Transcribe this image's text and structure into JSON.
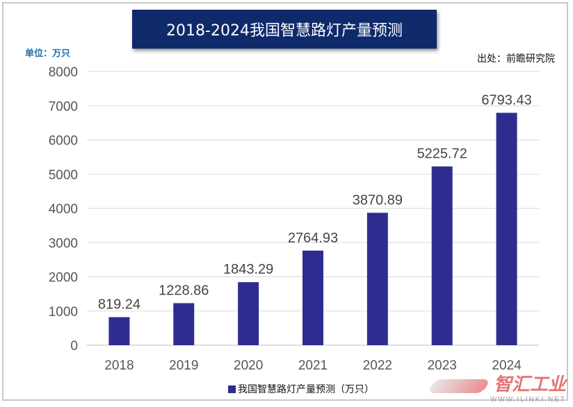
{
  "title": "2018-2024我国智慧路灯产量预测",
  "unit_label": "单位：万只",
  "source_label": "出处：前瞻研究院",
  "legend_label": "我国智慧路灯产量预测（万只）",
  "watermark": {
    "text": "智汇工业",
    "url": "WWW.ILINKI.NET"
  },
  "colors": {
    "bar": "#2e2d8f",
    "title_bg": "#0f2a6b",
    "unit": "#1a6fb0",
    "grid": "#d9d9d9"
  },
  "chart_data": {
    "type": "bar",
    "title": "2018-2024我国智慧路灯产量预测",
    "xlabel": "",
    "ylabel": "单位：万只",
    "categories": [
      "2018",
      "2019",
      "2020",
      "2021",
      "2022",
      "2023",
      "2024"
    ],
    "series": [
      {
        "name": "我国智慧路灯产量预测（万只）",
        "values": [
          819.24,
          1228.86,
          1843.29,
          2764.93,
          3870.89,
          5225.72,
          6793.43
        ]
      }
    ],
    "data_labels": [
      "819.24",
      "1228.86",
      "1843.29",
      "2764.93",
      "3870.89",
      "5225.72",
      "6793.43"
    ],
    "ylim": [
      0,
      8000
    ],
    "yticks": [
      0,
      1000,
      2000,
      3000,
      4000,
      5000,
      6000,
      7000,
      8000
    ],
    "grid": true,
    "legend": "bottom"
  }
}
